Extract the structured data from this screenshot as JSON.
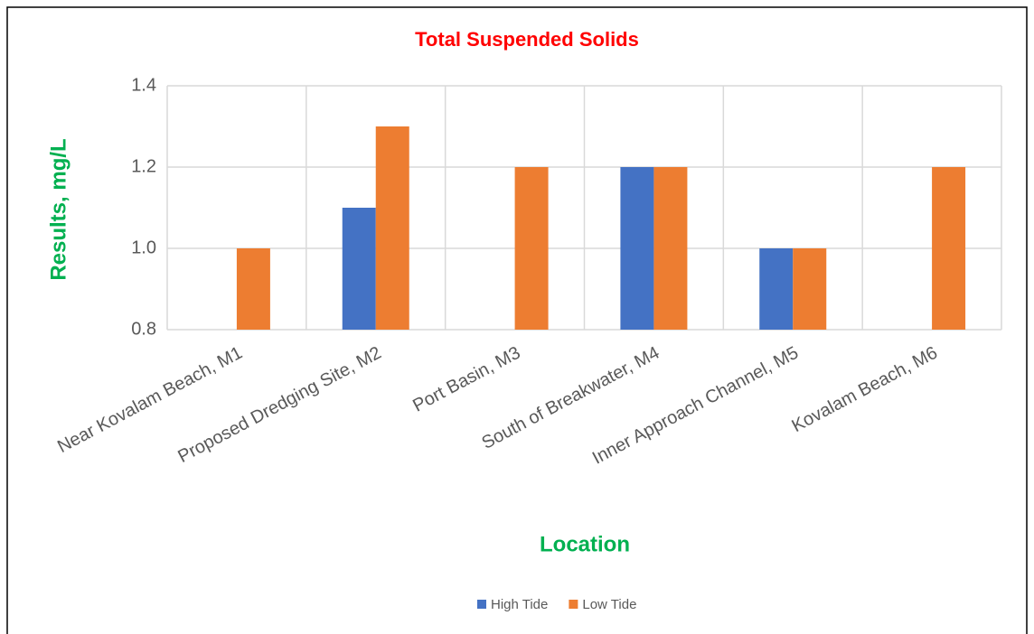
{
  "chart_data": {
    "type": "bar",
    "title": "Total Suspended Solids",
    "y_label": "Results, mg/L",
    "x_label": "Location",
    "categories": [
      "Near Kovalam Beach, M1",
      "Proposed Dredging Site, M2",
      "Port Basin, M3",
      "South of Breakwater, M4",
      "Inner Approach Channel, M5",
      "Kovalam Beach, M6"
    ],
    "series": [
      {
        "name": "High Tide",
        "color": "#4472c4",
        "values": [
          null,
          1.1,
          null,
          1.2,
          1.0,
          null
        ]
      },
      {
        "name": "Low Tide",
        "color": "#ed7d31",
        "values": [
          1.0,
          1.3,
          1.2,
          1.2,
          1.0,
          1.2
        ]
      }
    ],
    "ylim": [
      0.8,
      1.4
    ],
    "yticks": [
      0.8,
      {
        "value": 1.0,
        "label": "1.0"
      },
      1.2,
      1.4
    ],
    "grid": true,
    "legend": "bottom"
  }
}
